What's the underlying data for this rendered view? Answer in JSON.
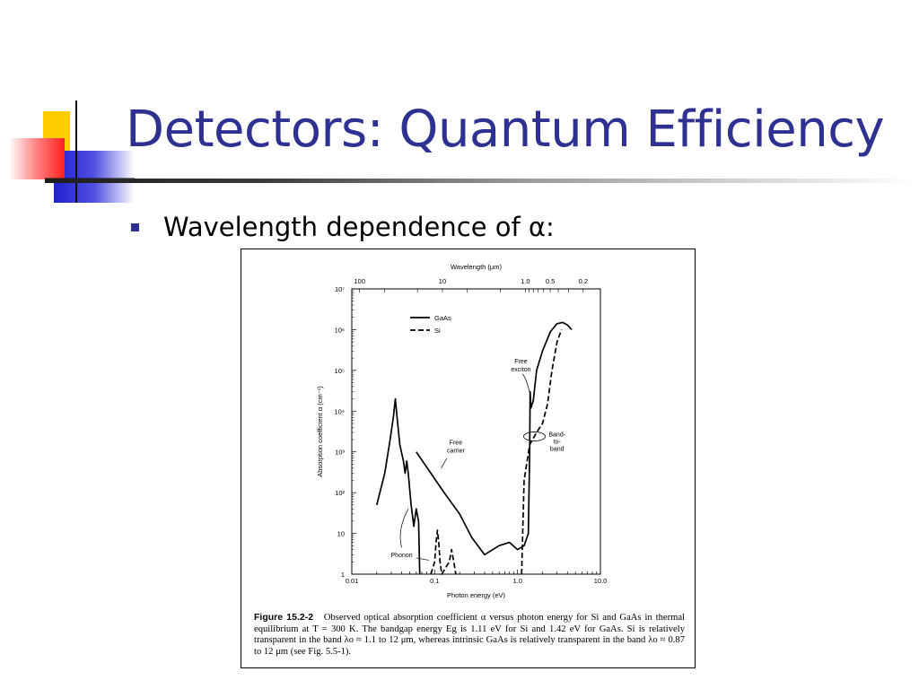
{
  "slide": {
    "title": "Detectors: Quantum Efficiency",
    "bullet": "Wavelength dependence of α:",
    "accent_color": "#2e3192"
  },
  "figure": {
    "caption_label": "Figure 15.2-2",
    "caption_text": "Observed optical absorption coefficient α versus photon energy for Si and GaAs in thermal equilibrium at T = 300 K. The bandgap energy Eg is 1.11 eV for Si and 1.42 eV for GaAs. Si is relatively transparent in the band λo ≈ 1.1 to 12 μm, whereas intrinsic GaAs is relatively transparent in the band λo ≈ 0.87 to 12 μm (see Fig. 5.5-1)."
  },
  "chart_data": {
    "type": "line",
    "xlabel": "Photon energy (eV)",
    "ylabel": "Absorption coefficient α (cm⁻¹)",
    "top_axis_label": "Wavelength (μm)",
    "xscale": "log",
    "yscale": "log",
    "xlim": [
      0.01,
      10.0
    ],
    "ylim": [
      1,
      10000000
    ],
    "x_tick_labels": [
      "0.01",
      "0.1",
      "1.0",
      "10.0"
    ],
    "y_tick_labels": [
      "1",
      "10",
      "10²",
      "10³",
      "10⁴",
      "10⁵",
      "10⁶",
      "10⁷"
    ],
    "top_tick_labels": [
      "100",
      "10",
      "1.0",
      "0.5",
      "0.2"
    ],
    "legend_position": "top-left",
    "annotations": [
      {
        "text": "Free exciton"
      },
      {
        "text": "Free carrier"
      },
      {
        "text": "Band-to-band"
      },
      {
        "text": "Phonon"
      }
    ],
    "series": [
      {
        "name": "GaAs",
        "style": "solid",
        "x": [
          0.02,
          0.025,
          0.029,
          0.032,
          0.0335,
          0.035,
          0.038,
          0.042,
          0.044,
          0.046,
          0.048,
          0.052,
          0.056,
          0.06,
          0.064,
          0.066
        ],
        "y": [
          50,
          300,
          2000,
          8000,
          20000,
          8000,
          1500,
          600,
          300,
          600,
          300,
          50,
          15,
          40,
          20,
          1
        ]
      },
      {
        "name": "GaAs",
        "style": "solid",
        "x": [
          0.06,
          0.09,
          0.13,
          0.2,
          0.28,
          0.4,
          0.6,
          0.8,
          1.0,
          1.2,
          1.35,
          1.4,
          1.42,
          1.45,
          1.55,
          1.7,
          2.0,
          2.5,
          3.0,
          3.5,
          4.0,
          4.5
        ],
        "y": [
          1000,
          300,
          100,
          30,
          8,
          3,
          5,
          6,
          4,
          5,
          10,
          1000,
          30000,
          12000,
          18000,
          100000,
          300000,
          900000,
          1400000,
          1500000,
          1300000,
          1000000
        ]
      },
      {
        "name": "Si",
        "style": "dashed",
        "x": [
          0.09,
          0.1,
          0.104,
          0.108,
          0.112,
          0.116,
          0.122,
          0.14,
          0.15,
          0.16,
          0.17,
          0.18
        ],
        "y": [
          1,
          2,
          6,
          12,
          6,
          2,
          1,
          1.6,
          2,
          4,
          2,
          1
        ],
        "x2": [
          1.12,
          1.2,
          1.4,
          1.7,
          2.0,
          2.3,
          2.6,
          3.0,
          3.4
        ],
        "y2": [
          1,
          200,
          1500,
          3000,
          5000,
          15000,
          100000,
          500000,
          1000000
        ]
      }
    ]
  }
}
